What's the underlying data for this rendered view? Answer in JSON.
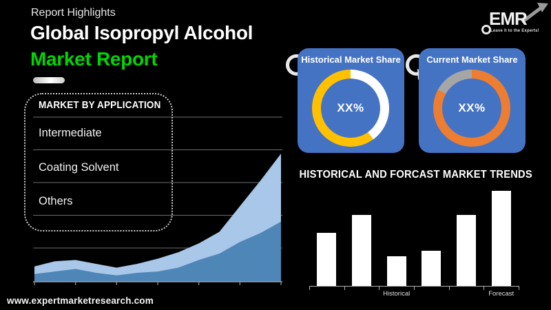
{
  "header": {
    "eyebrow": "Report Highlights",
    "title_line1": "Global Isopropyl Alcohol",
    "title_line2": "Market Report",
    "accent_green": "#00d600"
  },
  "logo": {
    "text": "EMR",
    "tagline": "Leave it to the Experts!"
  },
  "application_box": {
    "title": "MARKET BY APPLICATION",
    "items": [
      "Intermediate",
      "Coating Solvent",
      "Others"
    ]
  },
  "footer": {
    "url": "www.expertmarketresearch.com"
  },
  "colors": {
    "card_blue": "#4573c4",
    "area_light_blue": "#a9c7e8",
    "area_dark_blue": "#4e86b8",
    "donut_yellow": "#ffc000",
    "donut_orange": "#ed7d31",
    "donut_gray": "#a6a6a6",
    "bar_white": "#ffffff"
  },
  "chart_data": [
    {
      "id": "background-area-trend",
      "type": "area",
      "title": "",
      "x_tick_count": 7,
      "grid": true,
      "gridline_count": 5,
      "ylim": [
        0,
        100
      ],
      "series": [
        {
          "name": "upper-area",
          "color": "#a9c7e8",
          "values": [
            12,
            16,
            17,
            14,
            11,
            14,
            18,
            23,
            30,
            39,
            59,
            79,
            100
          ]
        },
        {
          "name": "lower-area",
          "color": "#4e86b8",
          "values": [
            6,
            8,
            10,
            7,
            5,
            7,
            8,
            11,
            17,
            22,
            31,
            38,
            47
          ]
        }
      ]
    },
    {
      "id": "donut-historical",
      "type": "pie",
      "title": "Historical Market Share",
      "center_label": "XX%",
      "segments": [
        {
          "name": "segment-white",
          "color": "#ffffff",
          "value": 40
        },
        {
          "name": "segment-yellow",
          "color": "#ffc000",
          "value": 60
        }
      ]
    },
    {
      "id": "donut-current",
      "type": "pie",
      "title": "Current Market Share",
      "center_label": "XX%",
      "segments": [
        {
          "name": "segment-orange",
          "color": "#ed7d31",
          "value": 83
        },
        {
          "name": "segment-gray",
          "color": "#a6a6a6",
          "value": 17
        }
      ]
    },
    {
      "id": "bar-trends",
      "type": "bar",
      "title": "HISTORICAL AND FORCAST MARKET TRENDS",
      "values": [
        56,
        75,
        31,
        37,
        75,
        100
      ],
      "ylim": [
        0,
        100
      ],
      "x_tick_count": 7,
      "bar_color": "#ffffff",
      "x_labels": [
        {
          "text": "Historical",
          "bar_index": 3
        },
        {
          "text": "Forecast",
          "bar_index": 6
        }
      ]
    }
  ]
}
